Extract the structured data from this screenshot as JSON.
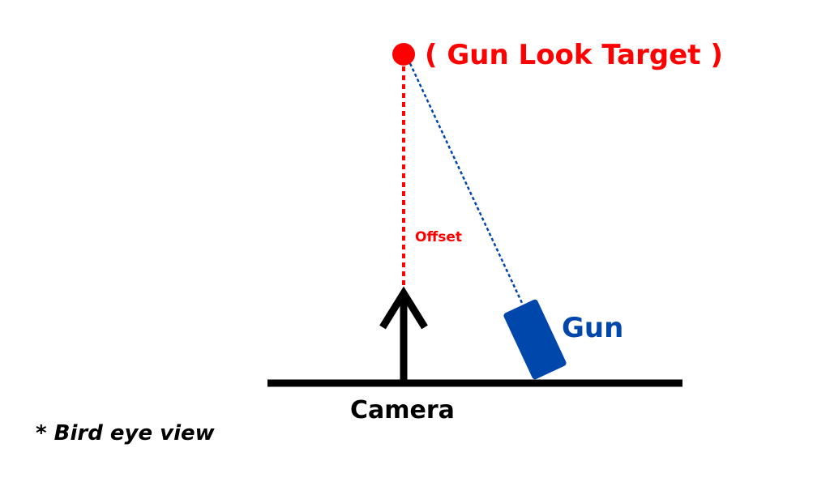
{
  "labels": {
    "target": "( Gun Look Target )",
    "offset": "Offset",
    "gun": "Gun",
    "camera": "Camera",
    "note": "* Bird eye view"
  },
  "colors": {
    "target": "#ff0000",
    "gun": "#0047ab",
    "camera": "#000000"
  }
}
